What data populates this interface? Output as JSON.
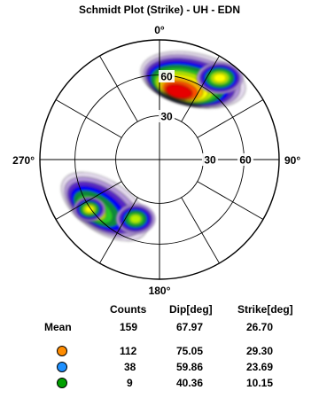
{
  "chart_data": {
    "type": "heatmap",
    "title": "Schmidt Plot (Strike) - UH - EDN",
    "projection": "schmidt-equal-area",
    "compass_labels": {
      "north": "0°",
      "east": "90°",
      "south": "180°",
      "west": "270°"
    },
    "dip_ring_labels": [
      "30",
      "60",
      "30",
      "60"
    ],
    "dip_rings": [
      30,
      60,
      90
    ],
    "radial_spokes_deg": [
      0,
      30,
      60,
      90,
      120,
      150,
      180,
      210,
      240,
      270,
      300,
      330
    ],
    "density_clusters": [
      {
        "strike_deg": 29.3,
        "dip_deg": 75.05,
        "count": 112,
        "color": "#ff8c00"
      },
      {
        "strike_deg": 23.69,
        "dip_deg": 59.86,
        "count": 38,
        "color": "#1e90ff"
      },
      {
        "strike_deg": 10.15,
        "dip_deg": 40.36,
        "count": 9,
        "color": "#00a000"
      }
    ],
    "contour_colors": [
      "#e6dcf0",
      "#b496dc",
      "#5a28c8",
      "#0000ff",
      "#0a8c3c",
      "#28c828",
      "#b4f000",
      "#ffff00",
      "#ffb400",
      "#ff5000",
      "#e60000"
    ]
  },
  "stats": {
    "headers": {
      "counts": "Counts",
      "dip": "Dip[deg]",
      "strike": "Strike[deg]"
    },
    "mean": {
      "label": "Mean",
      "counts": "159",
      "dip": "67.97",
      "strike": "26.70"
    },
    "rows": [
      {
        "color": "#ff8c00",
        "counts": "112",
        "dip": "75.05",
        "strike": "29.30"
      },
      {
        "color": "#1e90ff",
        "counts": "38",
        "dip": "59.86",
        "strike": "23.69"
      },
      {
        "color": "#00a000",
        "counts": "9",
        "dip": "40.36",
        "strike": "10.15"
      }
    ]
  }
}
